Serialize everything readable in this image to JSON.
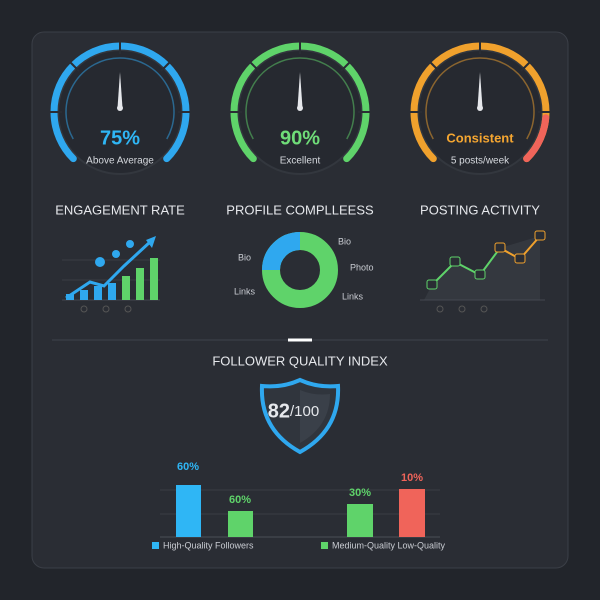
{
  "gauges": [
    {
      "value": "75%",
      "sub": "Above Average",
      "label": "ENGAGEMENT RATE"
    },
    {
      "value": "90%",
      "sub": "Excellent",
      "label": "PROFILE COMPLLEESS"
    },
    {
      "value": "Consistent",
      "sub": "5 posts/week",
      "label": "POSTING ACTIVITY"
    }
  ],
  "donut_labels": [
    "Bio",
    "Bio",
    "Photo",
    "Links",
    "Links"
  ],
  "quality": {
    "title": "FOLLOWER QUALITY INDEX",
    "score": "82",
    "out_of": "/100",
    "bar_labels": [
      "60%",
      "60%",
      "30%",
      "10%"
    ],
    "legend": [
      "High-Quality Followers",
      "Medium-Quality Low-Quality"
    ]
  }
}
